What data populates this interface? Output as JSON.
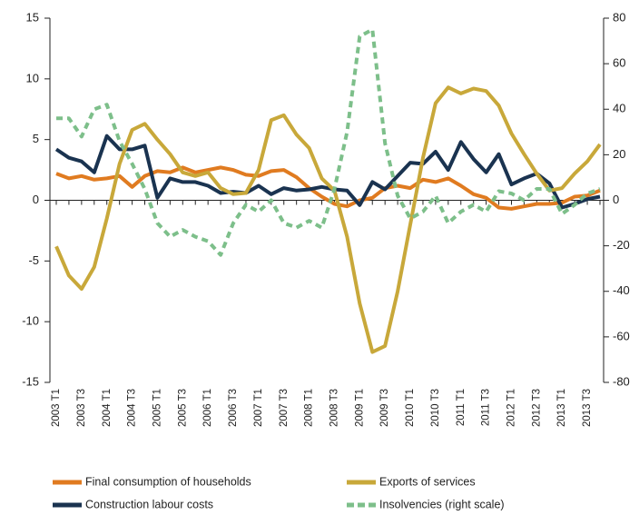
{
  "chart_data": {
    "type": "line",
    "categories": [
      "2003 T1",
      null,
      "2003 T3",
      null,
      "2004 T1",
      null,
      "2004 T3",
      null,
      "2005 T1",
      null,
      "2005 T3",
      null,
      "2006 T1",
      null,
      "2006 T3",
      null,
      "2007 T1",
      null,
      "2007 T3",
      null,
      "2008 T1",
      null,
      "2008 T3",
      null,
      "2009 T1",
      null,
      "2009 T3",
      null,
      "2010 T1",
      null,
      "2010 T3",
      null,
      "2011 T1",
      null,
      "2011 T3",
      null,
      "2012 T1",
      null,
      "2012 T3",
      null,
      "2013 T1",
      null,
      "2013 T3",
      null
    ],
    "series": [
      {
        "name": "Final consumption of households",
        "color": "#e07b20",
        "values": [
          2.2,
          1.8,
          2.0,
          1.7,
          1.8,
          2.0,
          1.1,
          2.0,
          2.4,
          2.3,
          2.7,
          2.3,
          2.5,
          2.7,
          2.5,
          2.1,
          2.0,
          2.4,
          2.5,
          1.9,
          1.0,
          0.3,
          -0.3,
          -0.5,
          0.0,
          0.2,
          1.0,
          1.2,
          1.0,
          1.7,
          1.5,
          1.8,
          1.2,
          0.5,
          0.2,
          -0.6,
          -0.7,
          -0.5,
          -0.3,
          -0.3,
          -0.2,
          0.3,
          0.4,
          0.8
        ]
      },
      {
        "name": "Construction labour costs",
        "color": "#1a3350",
        "values": [
          4.2,
          3.5,
          3.2,
          2.3,
          5.3,
          4.2,
          4.2,
          4.5,
          0.2,
          1.8,
          1.5,
          1.5,
          1.2,
          0.6,
          0.7,
          0.6,
          1.2,
          0.5,
          1.0,
          0.8,
          0.9,
          1.1,
          0.9,
          0.8,
          -0.4,
          1.5,
          0.9,
          2.0,
          3.1,
          3.0,
          4.0,
          2.5,
          4.8,
          3.4,
          2.3,
          3.8,
          1.3,
          1.8,
          2.2,
          1.4,
          -0.6,
          -0.3,
          0.1,
          0.3
        ]
      },
      {
        "name": "Exports of services",
        "color": "#c8a83a",
        "values": [
          -3.8,
          -6.2,
          -7.3,
          -5.5,
          -1.5,
          3.0,
          5.8,
          6.3,
          5.0,
          3.8,
          2.3,
          2.0,
          2.3,
          1.0,
          0.5,
          0.6,
          2.5,
          6.6,
          7.0,
          5.4,
          4.3,
          1.8,
          0.8,
          -3.0,
          -8.5,
          -12.5,
          -12.0,
          -7.5,
          -2.0,
          3.5,
          8.0,
          9.3,
          8.8,
          9.2,
          9.0,
          7.8,
          5.5,
          3.8,
          2.2,
          0.8,
          1.0,
          2.2,
          3.2,
          4.6
        ]
      },
      {
        "name": "Insolvencies (right scale)",
        "color": "#7dbf8a",
        "dashed": true,
        "axis": "y2",
        "values": [
          36,
          36,
          28,
          40,
          42,
          26,
          16,
          5,
          -10,
          -16,
          -13,
          -16,
          -18,
          -24,
          -10,
          -2,
          -5,
          0,
          -10,
          -12,
          -9,
          -12,
          5,
          30,
          72,
          75,
          25,
          2,
          -8,
          -5,
          2,
          -10,
          -5,
          -2,
          -5,
          4,
          3,
          0,
          5,
          5,
          -6,
          -2,
          3,
          5
        ]
      }
    ],
    "ylim": [
      -15,
      15
    ],
    "yticks": [
      15,
      10,
      5,
      0,
      -5,
      -10,
      -15
    ],
    "y2lim": [
      -80,
      80
    ],
    "y2ticks": [
      80,
      60,
      40,
      20,
      0,
      -20,
      -40,
      -60,
      -80
    ]
  }
}
